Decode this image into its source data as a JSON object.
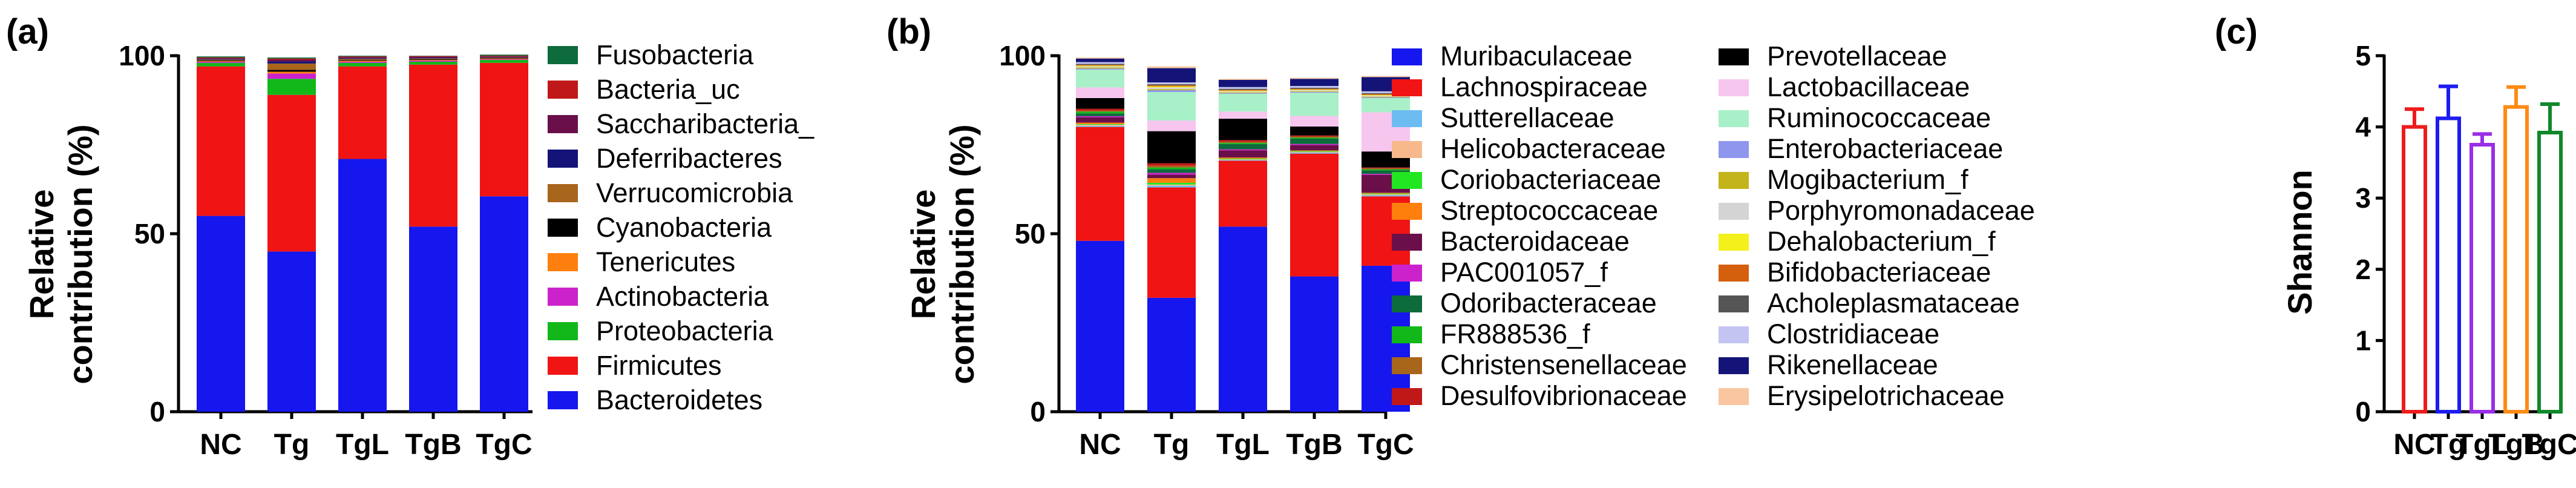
{
  "chart_data": [
    {
      "panel": "(a)",
      "type": "stacked-bar",
      "ylabel_line1": "Relative",
      "ylabel_line2": "contribution (%)",
      "ylim": [
        0,
        100
      ],
      "yticks": [
        "0",
        "50",
        "100"
      ],
      "categories": [
        "NC",
        "Tg",
        "TgL",
        "TgB",
        "TgC"
      ],
      "series": [
        {
          "name": "Bacteroidetes",
          "color": "#1616ee",
          "values": [
            55,
            45,
            71,
            52,
            60.5
          ]
        },
        {
          "name": "Firmicutes",
          "color": "#f01414",
          "values": [
            42,
            44,
            26,
            45.5,
            37.5
          ]
        },
        {
          "name": "Proteobacteria",
          "color": "#12b81a",
          "values": [
            1,
            4.5,
            1,
            0.8,
            0.8
          ]
        },
        {
          "name": "Actinobacteria",
          "color": "#cc22cc",
          "values": [
            0.3,
            1.5,
            0.3,
            0.3,
            0.2
          ]
        },
        {
          "name": "Tenericutes",
          "color": "#ff7f0e",
          "values": [
            0.2,
            0.5,
            0.3,
            0.2,
            0.2
          ]
        },
        {
          "name": "Cyanobacteria",
          "color": "#000000",
          "values": [
            0.2,
            0.5,
            0.2,
            0.2,
            0.2
          ]
        },
        {
          "name": "Verrucomicrobia",
          "color": "#a8651c",
          "values": [
            0.2,
            1.8,
            0.3,
            0.2,
            0.1
          ]
        },
        {
          "name": "Deferribacteres",
          "color": "#141478",
          "values": [
            0.2,
            0.6,
            0.2,
            0.2,
            0.1
          ]
        },
        {
          "name": "Saccharibacteria_",
          "color": "#6a0f4a",
          "values": [
            0.2,
            0.5,
            0.3,
            0.3,
            0.2
          ]
        },
        {
          "name": "Bacteria_uc",
          "color": "#c01818",
          "values": [
            0.2,
            0.3,
            0.2,
            0.2,
            0.2
          ]
        },
        {
          "name": "Fusobacteria",
          "color": "#0e6b3c",
          "values": [
            0.3,
            0.3,
            0.2,
            0.1,
            0.3
          ]
        }
      ]
    },
    {
      "panel": "(b)",
      "type": "stacked-bar",
      "ylabel_line1": "Relative",
      "ylabel_line2": "contribution (%)",
      "ylim": [
        0,
        100
      ],
      "yticks": [
        "0",
        "50",
        "100"
      ],
      "categories": [
        "NC",
        "Tg",
        "TgL",
        "TgB",
        "TgC"
      ],
      "series": [
        {
          "name": "Muribaculaceae",
          "color": "#1616ee",
          "values": [
            48,
            32,
            52,
            38,
            41
          ]
        },
        {
          "name": "Lachnospiraceae",
          "color": "#f01414",
          "values": [
            32,
            31,
            18.5,
            34.5,
            19.5
          ]
        },
        {
          "name": "Sutterellaceae",
          "color": "#6cbcf2",
          "values": [
            0.3,
            0.5,
            0.2,
            0.3,
            0.3
          ]
        },
        {
          "name": "Helicobacteraceae",
          "color": "#f7b98c",
          "values": [
            0.3,
            0.3,
            0.2,
            0.2,
            0.3
          ]
        },
        {
          "name": "Coriobacteriaceae",
          "color": "#22e622",
          "values": [
            0.2,
            0.5,
            0.2,
            0.2,
            0.2
          ]
        },
        {
          "name": "Streptococcaceae",
          "color": "#ff7f0e",
          "values": [
            0.4,
            1.3,
            0.3,
            0.2,
            0.2
          ]
        },
        {
          "name": "Bacteroidaceae",
          "color": "#6a0f4a",
          "values": [
            1.5,
            1,
            2,
            1.5,
            5
          ]
        },
        {
          "name": "PAC001057_f",
          "color": "#cc22cc",
          "values": [
            0.3,
            0.5,
            0.3,
            0.3,
            0.3
          ]
        },
        {
          "name": "Odoribacteraceae",
          "color": "#0e6b3c",
          "values": [
            0.8,
            1,
            1.5,
            1.5,
            1
          ]
        },
        {
          "name": "FR888536_f",
          "color": "#12b81a",
          "values": [
            0.5,
            0.5,
            0.3,
            0.3,
            0.3
          ]
        },
        {
          "name": "Christensenellaceae",
          "color": "#a8651c",
          "values": [
            0.3,
            0.5,
            0.3,
            0.3,
            0.3
          ]
        },
        {
          "name": "Desulfovibrionaceae",
          "color": "#c01818",
          "values": [
            0.5,
            0.7,
            0.5,
            0.3,
            0.2
          ]
        },
        {
          "name": "Prevotellaceae",
          "color": "#000000",
          "values": [
            3,
            9,
            6,
            2.5,
            4.5
          ]
        },
        {
          "name": "Lactobacillaceae",
          "color": "#f6c6ef",
          "values": [
            3,
            3,
            2,
            3,
            11
          ]
        },
        {
          "name": "Ruminococcaceae",
          "color": "#a8f0c8",
          "values": [
            5,
            8,
            5,
            6.5,
            4
          ]
        },
        {
          "name": "Enterobacteriaceae",
          "color": "#8e96ee",
          "values": [
            0.3,
            0.5,
            0.2,
            0.2,
            0.2
          ]
        },
        {
          "name": "Mogibacterium_f",
          "color": "#c4b41c",
          "values": [
            0.3,
            0.3,
            0.2,
            0.2,
            0.2
          ]
        },
        {
          "name": "Porphyromonadaceae",
          "color": "#d4d4d4",
          "values": [
            0.3,
            0.5,
            0.3,
            0.3,
            0.3
          ]
        },
        {
          "name": "Dehalobacterium_f",
          "color": "#f4f01c",
          "values": [
            0.2,
            0.3,
            0.2,
            0.2,
            0.2
          ]
        },
        {
          "name": "Bifidobacteriaceae",
          "color": "#d4600e",
          "values": [
            0.2,
            0.3,
            0.2,
            0.2,
            0.2
          ]
        },
        {
          "name": "Acholeplasmataceae",
          "color": "#555555",
          "values": [
            0.3,
            0.3,
            0.3,
            0.3,
            0.3
          ]
        },
        {
          "name": "Clostridiaceae",
          "color": "#c4c4f2",
          "values": [
            0.5,
            0.5,
            0.5,
            0.5,
            0.5
          ]
        },
        {
          "name": "Rikenellaceae",
          "color": "#141478",
          "values": [
            1,
            4,
            2,
            2,
            4
          ]
        },
        {
          "name": "Erysipelotrichaceae",
          "color": "#f9c6a0",
          "values": [
            0.3,
            0.5,
            0.3,
            0.3,
            0.3
          ]
        }
      ]
    },
    {
      "panel": "(c)",
      "type": "bar",
      "ylabel": "Shannon",
      "ylim": [
        0,
        5
      ],
      "yticks": [
        "0",
        "1",
        "2",
        "3",
        "4",
        "5"
      ],
      "categories": [
        "NC",
        "Tg",
        "TgL",
        "TgB",
        "TgC"
      ],
      "values": [
        4.0,
        4.12,
        3.75,
        4.28,
        3.92
      ],
      "errors": [
        0.25,
        0.45,
        0.15,
        0.28,
        0.4
      ],
      "colors": [
        "#ee1c1c",
        "#1c1cf0",
        "#9a2ee6",
        "#ff8a14",
        "#10882a"
      ]
    }
  ]
}
